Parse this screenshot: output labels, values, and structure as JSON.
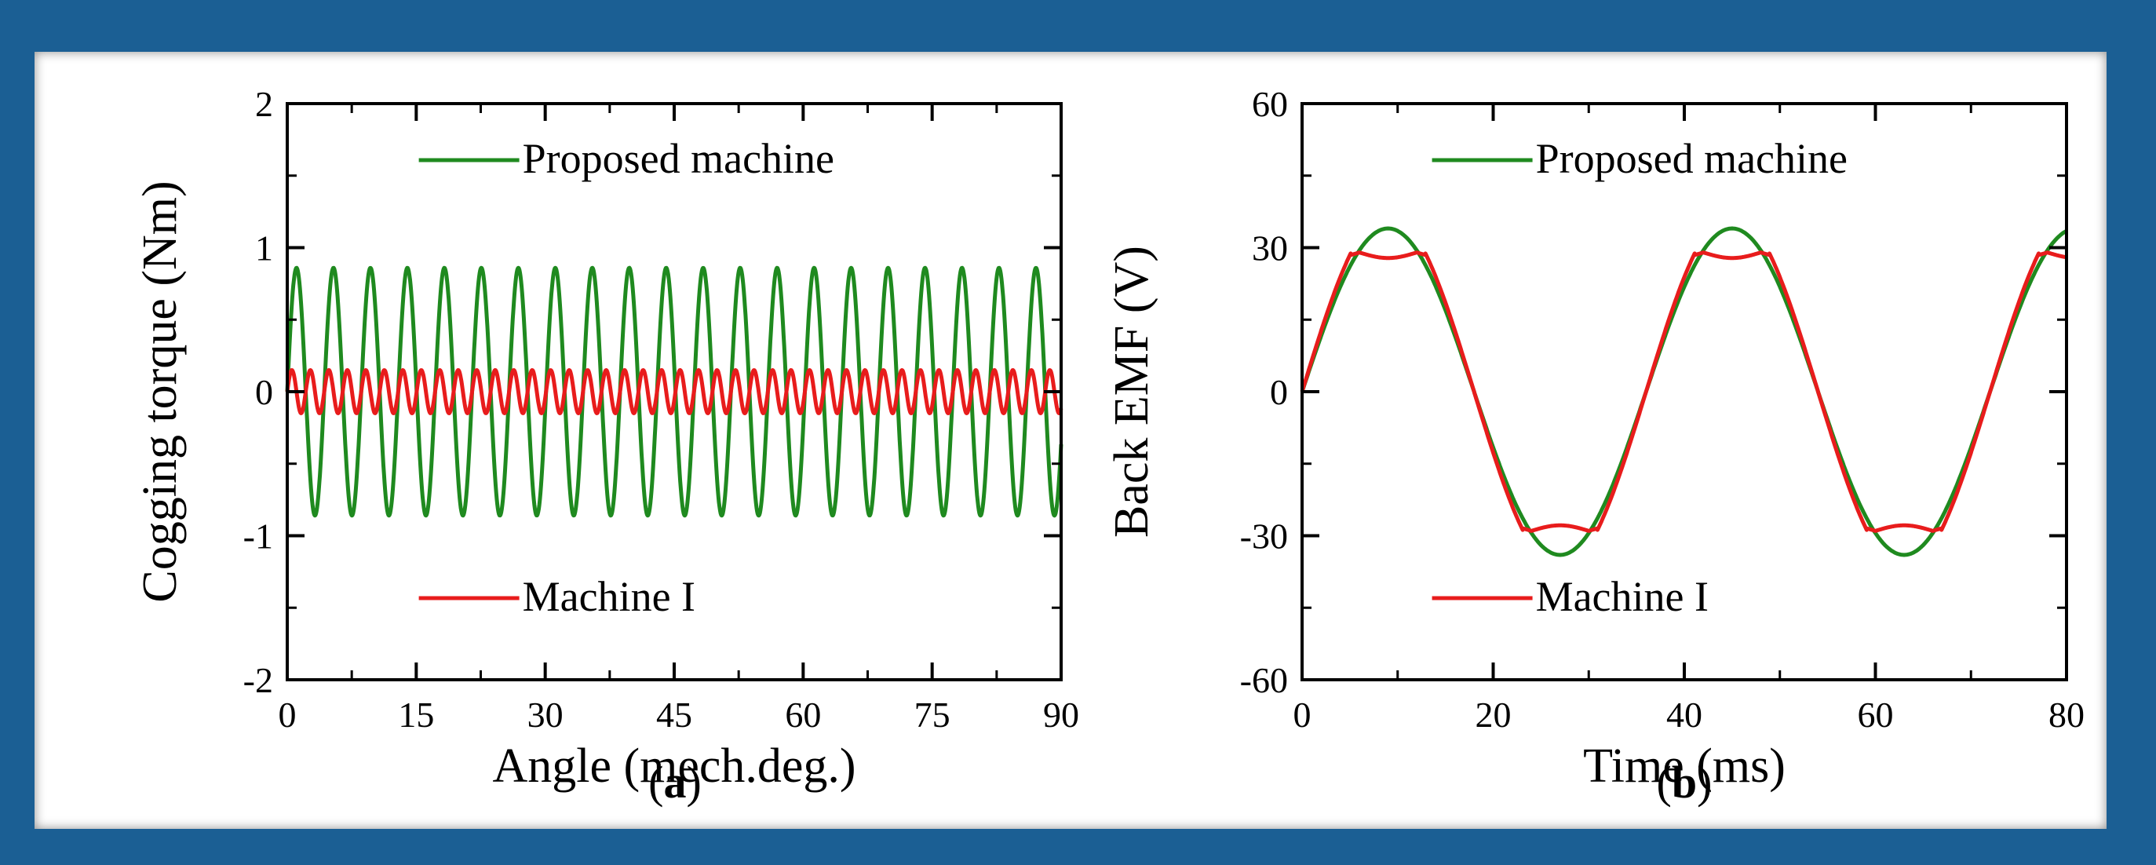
{
  "colors": {
    "frame": "#1b5f94",
    "proposed": "#1f8a1f",
    "machine1": "#e81c1c"
  },
  "chart_data": [
    {
      "type": "line",
      "panel": "a",
      "caption": "(a)",
      "xlabel": "Angle (mech.deg.)",
      "ylabel": "Cogging torque (Nm)",
      "xlim": [
        0,
        90
      ],
      "ylim": [
        -2,
        2
      ],
      "xticks": [
        0,
        15,
        30,
        45,
        60,
        75,
        90
      ],
      "yticks": [
        -2,
        -1,
        0,
        1,
        2
      ],
      "legend": [
        "Proposed machine",
        "Machine I"
      ],
      "series": [
        {
          "name": "Proposed machine",
          "color": "#1f8a1f",
          "waveform": "sine",
          "amplitude": 0.86,
          "period": 4.3,
          "offset": 0,
          "phase": 0,
          "x_start": 0,
          "x_end": 90
        },
        {
          "name": "Machine I",
          "color": "#e81c1c",
          "waveform": "sine",
          "amplitude": 0.15,
          "period": 2.15,
          "offset": 0,
          "phase": 0,
          "x_start": 0,
          "x_end": 90
        }
      ]
    },
    {
      "type": "line",
      "panel": "b",
      "caption": "(b)",
      "xlabel": "Time (ms)",
      "ylabel": "Back EMF (V)",
      "xlim": [
        0,
        80
      ],
      "ylim": [
        -60,
        60
      ],
      "xticks": [
        0,
        20,
        40,
        60,
        80
      ],
      "yticks": [
        -60,
        -30,
        0,
        30,
        60
      ],
      "legend": [
        "Proposed machine",
        "Machine I"
      ],
      "series": [
        {
          "name": "Proposed machine",
          "color": "#1f8a1f",
          "waveform": "sine",
          "amplitude": 34,
          "period": 36,
          "offset": 0,
          "phase": 0,
          "x_start": 0,
          "x_end": 80
        },
        {
          "name": "Machine I",
          "color": "#e81c1c",
          "waveform": "flat-top",
          "amplitude": 29,
          "period": 36,
          "offset": 0,
          "phase": 0,
          "x_start": 0,
          "x_end": 80
        }
      ]
    }
  ]
}
